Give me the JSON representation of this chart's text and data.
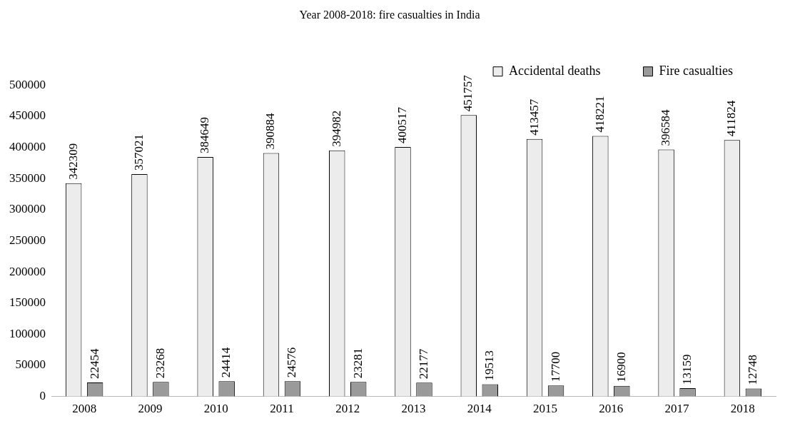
{
  "chart_data": {
    "type": "bar",
    "title": "Year 2008-2018: fire casualties in India",
    "categories": [
      "2008",
      "2009",
      "2010",
      "2011",
      "2012",
      "2013",
      "2014",
      "2015",
      "2016",
      "2017",
      "2018"
    ],
    "series": [
      {
        "name": "Accidental deaths",
        "color": "#ececec",
        "values": [
          342309,
          357021,
          384649,
          390884,
          394982,
          400517,
          451757,
          413457,
          418221,
          396584,
          411824
        ]
      },
      {
        "name": "Fire casualties",
        "color": "#9a9a9a",
        "values": [
          22454,
          23268,
          24414,
          24576,
          23281,
          22177,
          19513,
          17700,
          16900,
          13159,
          12748
        ]
      }
    ],
    "ylim": [
      0,
      500000
    ],
    "yticks": [
      0,
      50000,
      100000,
      150000,
      200000,
      250000,
      300000,
      350000,
      400000,
      450000,
      500000
    ],
    "grid": false,
    "legend": "top right",
    "data_labels": true
  }
}
